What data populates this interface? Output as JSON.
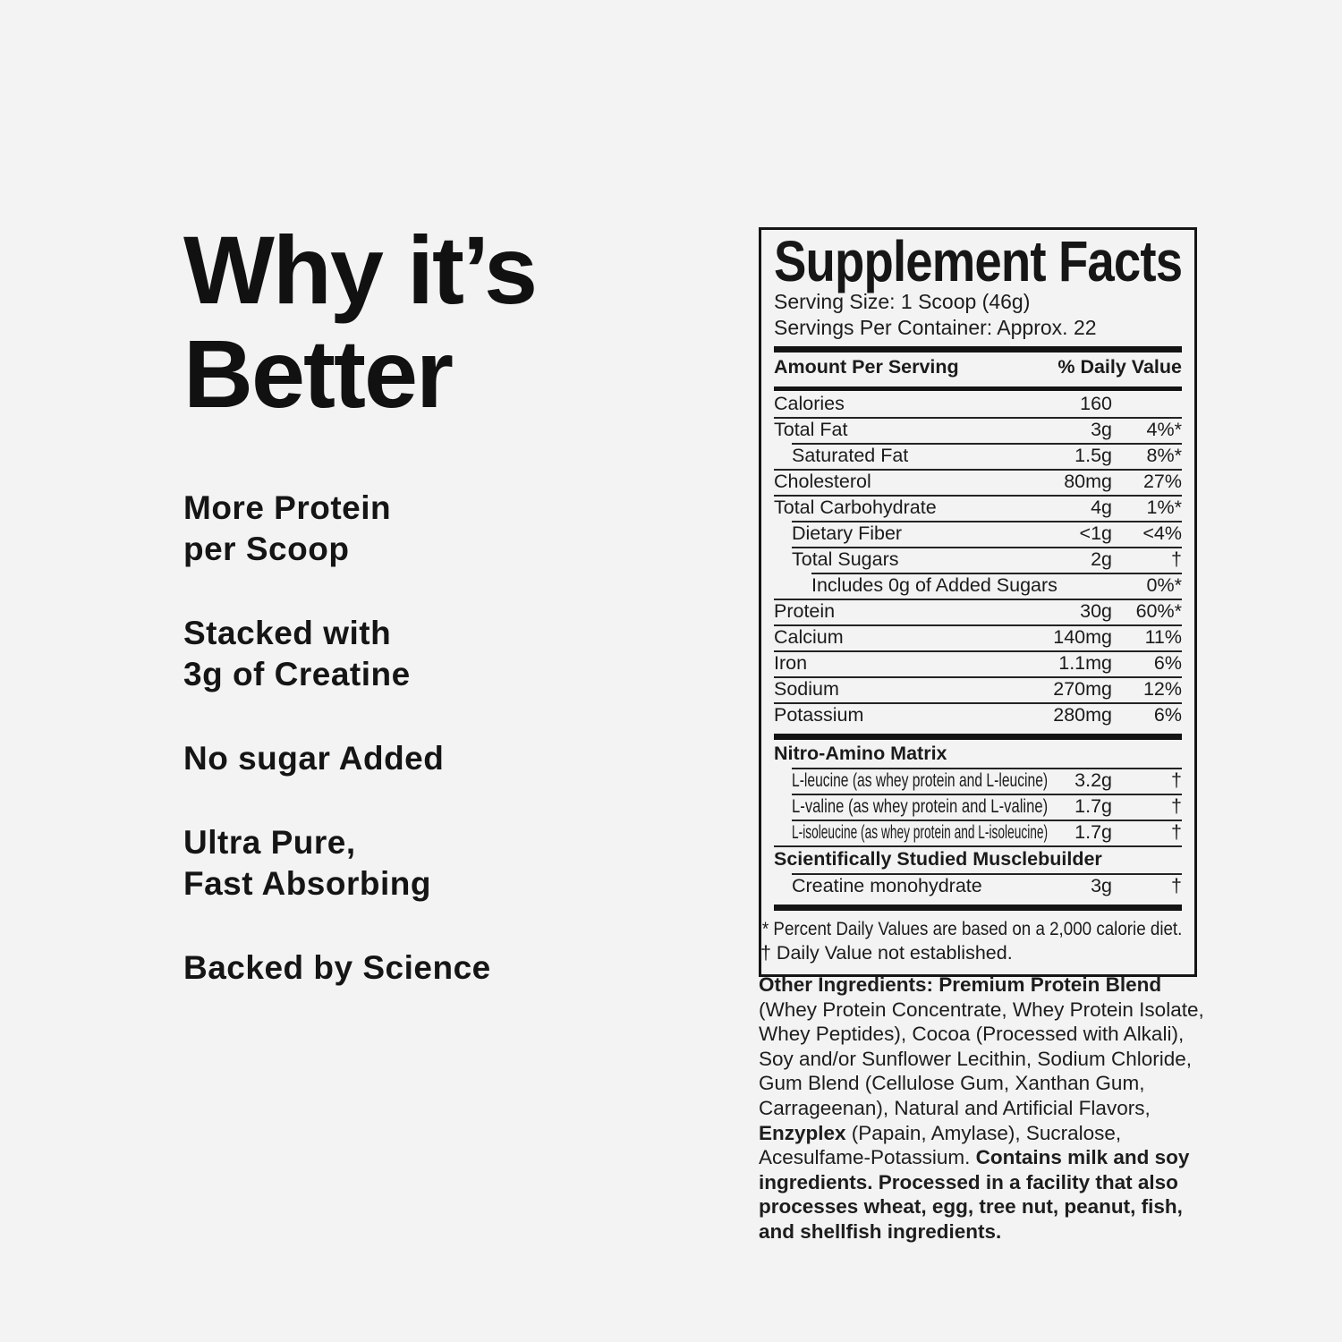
{
  "left_panel": {
    "heading": "Why it’s Better",
    "bullets": [
      "More Protein\nper Scoop",
      "Stacked with\n3g of Creatine",
      "No sugar Added",
      "Ultra Pure,\nFast Absorbing",
      "Backed by Science"
    ]
  },
  "facts": {
    "title": "Supplement Facts",
    "serving_size": "Serving Size: 1 Scoop (46g)",
    "servings_per_container": "Servings Per Container: Approx. 22",
    "col_amount": "Amount Per Serving",
    "col_dv": "% Daily Value",
    "rows": [
      {
        "name": "Calories",
        "amount": "160",
        "dv": ""
      },
      {
        "name": "Total Fat",
        "amount": "3g",
        "dv": "4%*"
      },
      {
        "name": "Saturated Fat",
        "amount": "1.5g",
        "dv": "8%*"
      },
      {
        "name": "Cholesterol",
        "amount": "80mg",
        "dv": "27%"
      },
      {
        "name": "Total Carbohydrate",
        "amount": "4g",
        "dv": "1%*"
      },
      {
        "name": "Dietary Fiber",
        "amount": "<1g",
        "dv": "<4%"
      },
      {
        "name": "Total Sugars",
        "amount": "2g",
        "dv": "†"
      },
      {
        "name": "Includes 0g of Added Sugars",
        "amount": "",
        "dv": "0%*"
      },
      {
        "name": "Protein",
        "amount": "30g",
        "dv": "60%*"
      },
      {
        "name": "Calcium",
        "amount": "140mg",
        "dv": "11%"
      },
      {
        "name": "Iron",
        "amount": "1.1mg",
        "dv": "6%"
      },
      {
        "name": "Sodium",
        "amount": "270mg",
        "dv": "12%"
      },
      {
        "name": "Potassium",
        "amount": "280mg",
        "dv": "6%"
      }
    ],
    "sections": [
      {
        "header": "Nitro-Amino Matrix",
        "rows": [
          {
            "name": "L-leucine (as whey protein and L-leucine)",
            "amount": "3.2g",
            "dv": "†"
          },
          {
            "name": "L-valine (as whey protein and L-valine)",
            "amount": "1.7g",
            "dv": "†"
          },
          {
            "name": "L-isoleucine (as whey protein and L-isoleucine)",
            "amount": "1.7g",
            "dv": "†"
          }
        ]
      },
      {
        "header": "Scientifically Studied Musclebuilder",
        "rows": [
          {
            "name": "Creatine monohydrate",
            "amount": "3g",
            "dv": "†"
          }
        ]
      }
    ],
    "footnotes": [
      "* Percent Daily Values are based on a 2,000 calorie diet.",
      "† Daily Value not established."
    ]
  },
  "other_ingredients": {
    "runs": [
      {
        "text": "Other Ingredients: Premium Protein Blend "
      },
      {
        "text": "(Whey Protein Concentrate, Whey Protein Isolate, Whey Peptides), Cocoa (Processed with Alkali), Soy and/or Sunflower Lecithin, Sodium Chloride, Gum Blend (Cellulose Gum, Xanthan Gum, Carrageenan), Natural and Artificial Flavors, "
      },
      {
        "text": "Enzyplex"
      },
      {
        "text": " (Papain, Amylase), Sucralose, Acesulfame-Potassium. "
      },
      {
        "text": "Contains milk and soy ingredients. Processed in a facility that also processes wheat, egg, tree nut, peanut, fish, and shellfish ingredients."
      }
    ]
  }
}
